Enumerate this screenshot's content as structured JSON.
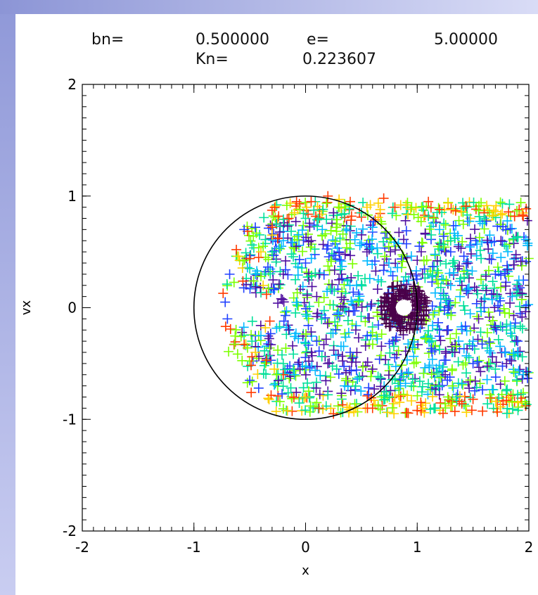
{
  "header": {
    "bn_label": "bn=",
    "bn_value": "0.500000",
    "e_label": "e=",
    "e_value": "5.00000",
    "kn_label": "Kn=",
    "kn_value": "0.223607"
  },
  "colors": {
    "background": "#ffffff",
    "band": "#9aa2df",
    "circle": "#000000",
    "core": "#4a004a"
  },
  "chart_data": {
    "type": "scatter",
    "title": "",
    "xlabel": "x",
    "ylabel": "vx",
    "xlim": [
      -2,
      2
    ],
    "ylim": [
      -2,
      2
    ],
    "xticks": [
      "-2",
      "-1",
      "0",
      "1",
      "2"
    ],
    "yticks": [
      "-2",
      "-1",
      "0",
      "1",
      "2"
    ],
    "grid": false,
    "marker": "+",
    "reference_circle": {
      "center": [
        0,
        0
      ],
      "radius": 1
    },
    "core_ring": {
      "center": [
        0.88,
        0.0
      ],
      "inner_radius": 0.08,
      "outer_radius": 0.22
    },
    "series": [
      {
        "color": "#ff3a00",
        "points": [
          [
            -0.62,
            0.52
          ],
          [
            -0.5,
            0.44
          ],
          [
            -0.48,
            -0.44
          ],
          [
            -0.42,
            0.45
          ],
          [
            -0.35,
            -0.47
          ],
          [
            -0.3,
            0.72
          ],
          [
            -0.25,
            0.62
          ],
          [
            -0.2,
            -0.6
          ],
          [
            -0.15,
            0.8
          ],
          [
            0.05,
            0.95
          ],
          [
            0.12,
            -0.9
          ],
          [
            0.2,
            1.0
          ],
          [
            0.25,
            -0.95
          ],
          [
            0.4,
            0.95
          ],
          [
            0.6,
            -0.9
          ],
          [
            0.8,
            0.9
          ],
          [
            1.0,
            -0.92
          ],
          [
            1.2,
            0.88
          ],
          [
            1.4,
            -0.86
          ],
          [
            1.6,
            0.85
          ],
          [
            1.8,
            -0.83
          ],
          [
            1.95,
            0.82
          ],
          [
            -0.35,
            0.12
          ],
          [
            -0.32,
            -0.12
          ],
          [
            1.1,
            0.95
          ],
          [
            1.5,
            -0.82
          ],
          [
            0.7,
            0.98
          ],
          [
            -0.55,
            -0.33
          ]
        ]
      },
      {
        "color": "#ffd000",
        "points": [
          [
            -0.6,
            0.46
          ],
          [
            -0.45,
            -0.4
          ],
          [
            -0.4,
            0.5
          ],
          [
            -0.3,
            0.65
          ],
          [
            -0.28,
            -0.55
          ],
          [
            -0.1,
            0.85
          ],
          [
            0.0,
            -0.8
          ],
          [
            0.3,
            0.97
          ],
          [
            0.45,
            -0.9
          ],
          [
            0.9,
            0.92
          ],
          [
            1.3,
            -0.88
          ],
          [
            1.7,
            0.86
          ],
          [
            1.9,
            -0.85
          ],
          [
            -0.38,
            0.2
          ],
          [
            -0.36,
            -0.18
          ],
          [
            0.55,
            0.9
          ],
          [
            1.05,
            -0.9
          ]
        ]
      },
      {
        "color": "#7cff00",
        "points": [
          [
            -0.56,
            0.42
          ],
          [
            -0.52,
            -0.36
          ],
          [
            -0.38,
            0.55
          ],
          [
            -0.26,
            -0.6
          ],
          [
            -0.05,
            0.88
          ],
          [
            0.1,
            -0.85
          ],
          [
            0.35,
            0.93
          ],
          [
            0.65,
            -0.88
          ],
          [
            0.95,
            0.9
          ],
          [
            1.25,
            -0.86
          ],
          [
            1.55,
            0.87
          ],
          [
            1.85,
            -0.84
          ],
          [
            -0.4,
            0.28
          ],
          [
            -0.42,
            -0.25
          ],
          [
            1.15,
            0.8
          ],
          [
            1.65,
            -0.78
          ]
        ]
      },
      {
        "color": "#00e09a",
        "points": [
          [
            -0.5,
            0.35
          ],
          [
            -0.48,
            -0.3
          ],
          [
            -0.3,
            0.5
          ],
          [
            -0.2,
            -0.5
          ],
          [
            0.0,
            0.8
          ],
          [
            0.2,
            -0.78
          ],
          [
            0.5,
            0.85
          ],
          [
            0.75,
            -0.8
          ],
          [
            1.1,
            0.82
          ],
          [
            1.35,
            -0.8
          ],
          [
            1.6,
            0.8
          ],
          [
            1.9,
            -0.78
          ],
          [
            1.3,
            0.6
          ],
          [
            1.7,
            -0.55
          ],
          [
            1.45,
            0.3
          ],
          [
            1.8,
            -0.2
          ]
        ]
      },
      {
        "color": "#00b8ff",
        "points": [
          [
            -0.45,
            0.3
          ],
          [
            -0.4,
            -0.25
          ],
          [
            -0.2,
            0.6
          ],
          [
            -0.1,
            -0.6
          ],
          [
            0.15,
            0.7
          ],
          [
            0.35,
            -0.7
          ],
          [
            0.6,
            0.72
          ],
          [
            0.85,
            -0.7
          ],
          [
            1.2,
            0.7
          ],
          [
            1.4,
            -0.68
          ],
          [
            1.65,
            0.65
          ],
          [
            1.95,
            -0.6
          ],
          [
            1.3,
            0.2
          ],
          [
            1.5,
            -0.3
          ],
          [
            1.75,
            0.45
          ],
          [
            1.85,
            0.1
          ]
        ]
      },
      {
        "color": "#2040ff",
        "points": [
          [
            -0.68,
            0.3
          ],
          [
            -0.72,
            0.05
          ],
          [
            -0.7,
            -0.1
          ],
          [
            -0.55,
            0.7
          ],
          [
            -0.5,
            -0.65
          ],
          [
            -0.45,
            0.72
          ],
          [
            -0.42,
            -0.72
          ],
          [
            0.0,
            0.4
          ],
          [
            0.1,
            -0.3
          ],
          [
            0.3,
            0.5
          ],
          [
            0.4,
            -0.4
          ],
          [
            1.3,
            0.5
          ],
          [
            1.5,
            -0.5
          ],
          [
            1.7,
            0.3
          ],
          [
            1.9,
            -0.3
          ],
          [
            1.6,
            0.0
          ],
          [
            1.2,
            -0.2
          ]
        ]
      },
      {
        "color": "#5010a0",
        "points": [
          [
            -0.2,
            0.3
          ],
          [
            -0.15,
            -0.2
          ],
          [
            0.05,
            0.6
          ],
          [
            0.1,
            0.1
          ],
          [
            0.2,
            -0.5
          ],
          [
            0.3,
            0.25
          ],
          [
            0.45,
            -0.2
          ],
          [
            0.55,
            0.5
          ],
          [
            0.6,
            -0.55
          ],
          [
            1.4,
            0.2
          ],
          [
            1.55,
            -0.1
          ],
          [
            1.75,
            0.6
          ],
          [
            1.8,
            -0.5
          ],
          [
            1.25,
            -0.6
          ],
          [
            -0.05,
            -0.55
          ],
          [
            0.25,
            0.85
          ]
        ]
      }
    ]
  }
}
